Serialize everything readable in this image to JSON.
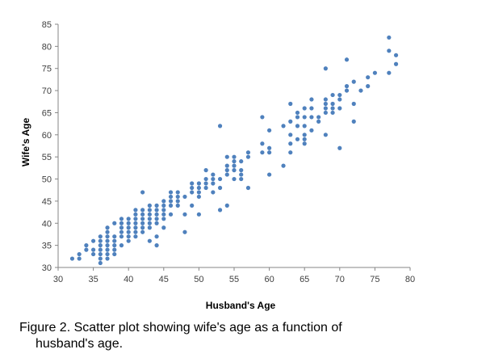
{
  "chart_data": {
    "type": "scatter",
    "xlabel": "Husband's Age",
    "ylabel": "Wife's Age",
    "xlim": [
      30,
      80
    ],
    "ylim": [
      30,
      85
    ],
    "xticks": [
      "30",
      "35",
      "40",
      "45",
      "50",
      "55",
      "60",
      "65",
      "70",
      "75",
      "80"
    ],
    "yticks": [
      "30",
      "35",
      "40",
      "45",
      "50",
      "55",
      "60",
      "65",
      "70",
      "75",
      "80",
      "85"
    ],
    "grid": false,
    "legend": "none",
    "point_color": "#4f81bd",
    "series": [
      {
        "points": [
          [
            32,
            32
          ],
          [
            33,
            32
          ],
          [
            33,
            33
          ],
          [
            34,
            34
          ],
          [
            34,
            35
          ],
          [
            35,
            33
          ],
          [
            35,
            34
          ],
          [
            35,
            36
          ],
          [
            36,
            32
          ],
          [
            36,
            33
          ],
          [
            36,
            34
          ],
          [
            36,
            35
          ],
          [
            36,
            36
          ],
          [
            36,
            37
          ],
          [
            36,
            31
          ],
          [
            37,
            32
          ],
          [
            37,
            33
          ],
          [
            37,
            34
          ],
          [
            37,
            35
          ],
          [
            37,
            36
          ],
          [
            37,
            37
          ],
          [
            37,
            38
          ],
          [
            37,
            39
          ],
          [
            38,
            33
          ],
          [
            38,
            34
          ],
          [
            38,
            35
          ],
          [
            38,
            36
          ],
          [
            38,
            37
          ],
          [
            38,
            40
          ],
          [
            39,
            35
          ],
          [
            39,
            37
          ],
          [
            39,
            38
          ],
          [
            39,
            39
          ],
          [
            39,
            40
          ],
          [
            39,
            41
          ],
          [
            40,
            36
          ],
          [
            40,
            37
          ],
          [
            40,
            38
          ],
          [
            40,
            39
          ],
          [
            40,
            40
          ],
          [
            40,
            41
          ],
          [
            41,
            37
          ],
          [
            41,
            38
          ],
          [
            41,
            39
          ],
          [
            41,
            40
          ],
          [
            41,
            41
          ],
          [
            41,
            42
          ],
          [
            41,
            43
          ],
          [
            42,
            38
          ],
          [
            42,
            39
          ],
          [
            42,
            40
          ],
          [
            42,
            41
          ],
          [
            42,
            42
          ],
          [
            42,
            43
          ],
          [
            42,
            47
          ],
          [
            43,
            36
          ],
          [
            43,
            39
          ],
          [
            43,
            40
          ],
          [
            43,
            41
          ],
          [
            43,
            42
          ],
          [
            43,
            43
          ],
          [
            43,
            44
          ],
          [
            44,
            35
          ],
          [
            44,
            37
          ],
          [
            44,
            40
          ],
          [
            44,
            41
          ],
          [
            44,
            42
          ],
          [
            44,
            43
          ],
          [
            44,
            44
          ],
          [
            45,
            39
          ],
          [
            45,
            41
          ],
          [
            45,
            42
          ],
          [
            45,
            43
          ],
          [
            45,
            44
          ],
          [
            45,
            45
          ],
          [
            46,
            42
          ],
          [
            46,
            44
          ],
          [
            46,
            45
          ],
          [
            46,
            46
          ],
          [
            46,
            47
          ],
          [
            47,
            44
          ],
          [
            47,
            45
          ],
          [
            47,
            46
          ],
          [
            47,
            47
          ],
          [
            48,
            38
          ],
          [
            48,
            42
          ],
          [
            48,
            46
          ],
          [
            49,
            44
          ],
          [
            49,
            47
          ],
          [
            49,
            48
          ],
          [
            49,
            49
          ],
          [
            50,
            42
          ],
          [
            50,
            46
          ],
          [
            50,
            47
          ],
          [
            50,
            48
          ],
          [
            50,
            49
          ],
          [
            51,
            48
          ],
          [
            51,
            49
          ],
          [
            51,
            50
          ],
          [
            51,
            52
          ],
          [
            52,
            47
          ],
          [
            52,
            49
          ],
          [
            52,
            50
          ],
          [
            52,
            51
          ],
          [
            53,
            43
          ],
          [
            53,
            48
          ],
          [
            53,
            50
          ],
          [
            53,
            62
          ],
          [
            54,
            44
          ],
          [
            54,
            51
          ],
          [
            54,
            52
          ],
          [
            54,
            53
          ],
          [
            54,
            55
          ],
          [
            55,
            50
          ],
          [
            55,
            52
          ],
          [
            55,
            53
          ],
          [
            55,
            54
          ],
          [
            55,
            55
          ],
          [
            56,
            50
          ],
          [
            56,
            51
          ],
          [
            56,
            52
          ],
          [
            56,
            54
          ],
          [
            57,
            48
          ],
          [
            57,
            55
          ],
          [
            57,
            56
          ],
          [
            59,
            56
          ],
          [
            59,
            58
          ],
          [
            59,
            64
          ],
          [
            60,
            51
          ],
          [
            60,
            56
          ],
          [
            60,
            57
          ],
          [
            60,
            61
          ],
          [
            62,
            53
          ],
          [
            62,
            62
          ],
          [
            63,
            56
          ],
          [
            63,
            58
          ],
          [
            63,
            60
          ],
          [
            63,
            63
          ],
          [
            63,
            67
          ],
          [
            64,
            59
          ],
          [
            64,
            62
          ],
          [
            64,
            64
          ],
          [
            64,
            65
          ],
          [
            65,
            58
          ],
          [
            65,
            59
          ],
          [
            65,
            60
          ],
          [
            65,
            62
          ],
          [
            65,
            64
          ],
          [
            65,
            66
          ],
          [
            66,
            61
          ],
          [
            66,
            64
          ],
          [
            66,
            66
          ],
          [
            66,
            68
          ],
          [
            67,
            63
          ],
          [
            67,
            64
          ],
          [
            68,
            60
          ],
          [
            68,
            65
          ],
          [
            68,
            66
          ],
          [
            68,
            67
          ],
          [
            68,
            68
          ],
          [
            68,
            75
          ],
          [
            69,
            65
          ],
          [
            69,
            66
          ],
          [
            69,
            67
          ],
          [
            69,
            69
          ],
          [
            70,
            57
          ],
          [
            70,
            66
          ],
          [
            70,
            68
          ],
          [
            70,
            69
          ],
          [
            71,
            70
          ],
          [
            71,
            71
          ],
          [
            71,
            77
          ],
          [
            72,
            63
          ],
          [
            72,
            67
          ],
          [
            72,
            72
          ],
          [
            73,
            70
          ],
          [
            74,
            71
          ],
          [
            74,
            73
          ],
          [
            75,
            74
          ],
          [
            77,
            74
          ],
          [
            77,
            79
          ],
          [
            77,
            82
          ],
          [
            78,
            76
          ],
          [
            78,
            78
          ]
        ]
      }
    ]
  },
  "caption": {
    "line1": "Figure 2. Scatter plot showing wife's age as a function of",
    "line2": "husband's age."
  }
}
